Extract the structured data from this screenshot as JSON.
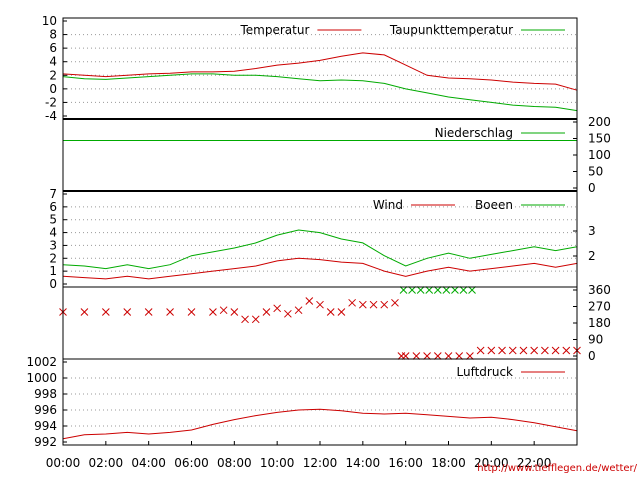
{
  "credit": "http://www.tiefflegen.de/wetter/",
  "colors": {
    "red": "#cc0000",
    "green": "#00aa00",
    "axis": "#000000",
    "grid": "#999999",
    "cross_gray": "#777777"
  },
  "time_axis": {
    "ticks": [
      "00:00",
      "02:00",
      "04:00",
      "06:00",
      "08:00",
      "10:00",
      "12:00",
      "14:00",
      "16:00",
      "18:00",
      "20:00",
      "22:00"
    ],
    "range_hours": [
      0,
      24
    ]
  },
  "chart_data": [
    {
      "type": "line",
      "panel": "temperature",
      "ylim": [
        -4,
        10
      ],
      "y_ticks": [
        "10",
        "8",
        "6",
        "4",
        "2",
        "0",
        "-2",
        "-4"
      ],
      "series": [
        {
          "name": "Temperatur",
          "color": "#cc0000",
          "x": [
            0,
            1,
            2,
            3,
            4,
            5,
            6,
            7,
            8,
            9,
            10,
            11,
            12,
            13,
            14,
            15,
            16,
            17,
            18,
            19,
            20,
            21,
            22,
            23,
            24
          ],
          "values": [
            2.2,
            2.0,
            1.8,
            2.0,
            2.2,
            2.3,
            2.5,
            2.5,
            2.6,
            3.0,
            3.5,
            3.8,
            4.2,
            4.8,
            5.3,
            5.0,
            3.5,
            2.0,
            1.6,
            1.5,
            1.3,
            1.0,
            0.8,
            0.7,
            -0.2
          ]
        },
        {
          "name": "Taupunkttemperatur",
          "color": "#00aa00",
          "x": [
            0,
            1,
            2,
            3,
            4,
            5,
            6,
            7,
            8,
            9,
            10,
            11,
            12,
            13,
            14,
            15,
            16,
            17,
            18,
            19,
            20,
            21,
            22,
            23,
            24
          ],
          "values": [
            1.8,
            1.5,
            1.4,
            1.6,
            1.8,
            2.0,
            2.2,
            2.2,
            2.0,
            2.0,
            1.8,
            1.5,
            1.2,
            1.3,
            1.2,
            0.8,
            0.0,
            -0.6,
            -1.2,
            -1.6,
            -2.0,
            -2.4,
            -2.6,
            -2.7,
            -3.2
          ]
        }
      ]
    },
    {
      "type": "line",
      "panel": "precipitation",
      "ylim": [
        0,
        200
      ],
      "y_ticks_right": [
        "200",
        "150",
        "100",
        "50",
        "0"
      ],
      "series": [
        {
          "name": "Niederschlag",
          "color": "#00aa00",
          "x": [
            0,
            24
          ],
          "values": [
            144,
            144
          ]
        }
      ]
    },
    {
      "type": "line",
      "panel": "wind",
      "ylim": [
        0,
        7
      ],
      "y_ticks": [
        "7",
        "6",
        "5",
        "4",
        "3",
        "2",
        "1",
        "0"
      ],
      "y_ticks_right": [
        "3",
        "2"
      ],
      "series": [
        {
          "name": "Wind",
          "color": "#cc0000",
          "x": [
            0,
            1,
            2,
            3,
            4,
            5,
            6,
            7,
            8,
            9,
            10,
            11,
            12,
            13,
            14,
            15,
            16,
            17,
            18,
            19,
            20,
            21,
            22,
            23,
            24
          ],
          "values": [
            0.6,
            0.5,
            0.4,
            0.6,
            0.4,
            0.6,
            0.8,
            1.0,
            1.2,
            1.4,
            1.8,
            2.0,
            1.9,
            1.7,
            1.6,
            1.0,
            0.6,
            1.0,
            1.3,
            1.0,
            1.2,
            1.4,
            1.6,
            1.3,
            1.6
          ]
        },
        {
          "name": "Boeen",
          "color": "#00aa00",
          "x": [
            0,
            1,
            2,
            3,
            4,
            5,
            6,
            7,
            8,
            9,
            10,
            11,
            12,
            13,
            14,
            15,
            16,
            17,
            18,
            19,
            20,
            21,
            22,
            23,
            24
          ],
          "values": [
            1.5,
            1.4,
            1.2,
            1.5,
            1.2,
            1.5,
            2.2,
            2.5,
            2.8,
            3.2,
            3.8,
            4.2,
            4.0,
            3.5,
            3.2,
            2.2,
            1.4,
            2.0,
            2.4,
            2.0,
            2.3,
            2.6,
            2.9,
            2.6,
            2.9
          ]
        }
      ]
    },
    {
      "type": "scatter",
      "panel": "wind_direction",
      "ylim": [
        0,
        360
      ],
      "y_ticks_right": [
        "360",
        "270",
        "180",
        "90",
        "0"
      ],
      "series": [
        {
          "name": "",
          "color": "#cc0000",
          "x": [
            0,
            1,
            2,
            3,
            4,
            5,
            6,
            7,
            7.5,
            8,
            8.5,
            9,
            9.5,
            10,
            10.5,
            11,
            11.5,
            12,
            12.5,
            13,
            13.5,
            14,
            14.5,
            15,
            15.5,
            15.8,
            16,
            16.5,
            17,
            17.5,
            18,
            18.5,
            19,
            19.5,
            20,
            20.5,
            21,
            21.5,
            22,
            22.5,
            23,
            23.5,
            24
          ],
          "values": [
            240,
            240,
            240,
            240,
            240,
            240,
            240,
            240,
            250,
            240,
            200,
            200,
            240,
            260,
            230,
            250,
            300,
            280,
            240,
            240,
            290,
            280,
            280,
            280,
            290,
            0,
            0,
            0,
            0,
            0,
            0,
            0,
            0,
            30,
            30,
            30,
            30,
            30,
            30,
            30,
            30,
            30,
            30
          ]
        },
        {
          "name": "",
          "color": "#00aa00",
          "x": [
            15.9,
            16.3,
            16.7,
            17.1,
            17.5,
            17.9,
            18.3,
            18.7,
            19.1
          ],
          "values": [
            360,
            360,
            360,
            360,
            360,
            360,
            360,
            360,
            360
          ]
        }
      ]
    },
    {
      "type": "line",
      "panel": "pressure",
      "ylim": [
        992,
        1002
      ],
      "y_ticks": [
        "1002",
        "1000",
        "998",
        "996",
        "994",
        "992"
      ],
      "series": [
        {
          "name": "Luftdruck",
          "color": "#cc0000",
          "x": [
            0,
            1,
            2,
            3,
            4,
            5,
            6,
            7,
            8,
            9,
            10,
            11,
            12,
            13,
            14,
            15,
            16,
            17,
            18,
            19,
            20,
            21,
            22,
            23,
            24
          ],
          "values": [
            992.4,
            992.9,
            993.0,
            993.2,
            993.0,
            993.2,
            993.5,
            994.2,
            994.8,
            995.3,
            995.7,
            996.0,
            996.1,
            995.9,
            995.6,
            995.5,
            995.6,
            995.4,
            995.2,
            995.0,
            995.1,
            994.8,
            994.4,
            993.9,
            993.4
          ]
        }
      ]
    }
  ]
}
